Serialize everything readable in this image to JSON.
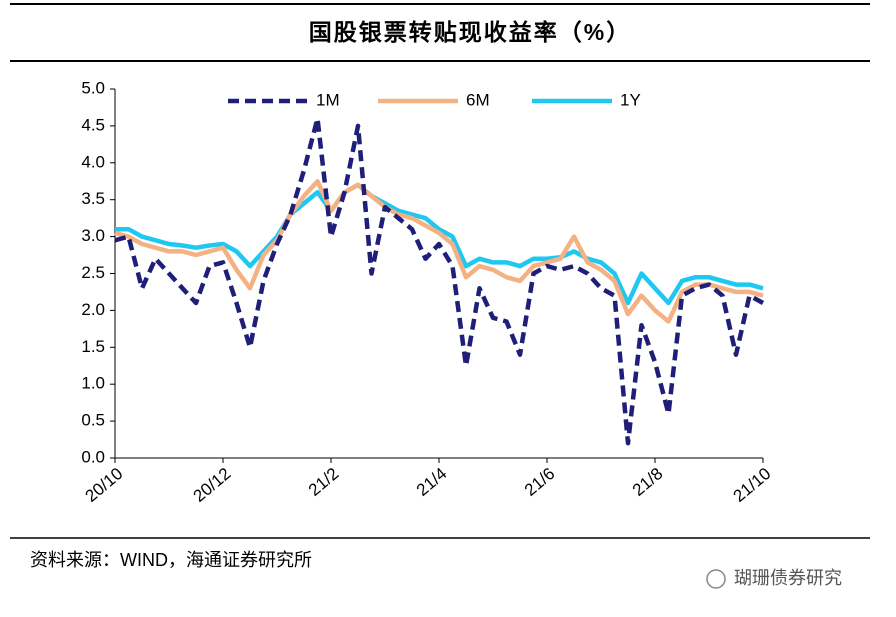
{
  "chart_data": {
    "type": "line",
    "title": "国股银票转贴现收益率（%）",
    "source": "资料来源：WIND，海通证券研究所",
    "watermark": "瑚珊债券研究",
    "legend": "top",
    "xlim": [
      0,
      12
    ],
    "xticks": [
      {
        "value": 0,
        "label": "20/10"
      },
      {
        "value": 2,
        "label": "20/12"
      },
      {
        "value": 4,
        "label": "21/2"
      },
      {
        "value": 6,
        "label": "21/4"
      },
      {
        "value": 8,
        "label": "21/6"
      },
      {
        "value": 10,
        "label": "21/8"
      },
      {
        "value": 12,
        "label": "21/10"
      }
    ],
    "ylim": [
      0,
      5
    ],
    "yticks": [
      {
        "value": 0,
        "label": "0.0"
      },
      {
        "value": 0.5,
        "label": "0.5"
      },
      {
        "value": 1,
        "label": "1.0"
      },
      {
        "value": 1.5,
        "label": "1.5"
      },
      {
        "value": 2,
        "label": "2.0"
      },
      {
        "value": 2.5,
        "label": "2.5"
      },
      {
        "value": 3,
        "label": "3.0"
      },
      {
        "value": 3.5,
        "label": "3.5"
      },
      {
        "value": 4,
        "label": "4.0"
      },
      {
        "value": 4.5,
        "label": "4.5"
      },
      {
        "value": 5,
        "label": "5.0"
      }
    ],
    "x": [
      0,
      0.25,
      0.5,
      0.75,
      1,
      1.25,
      1.5,
      1.75,
      2,
      2.25,
      2.5,
      2.75,
      3,
      3.25,
      3.5,
      3.75,
      4,
      4.25,
      4.5,
      4.75,
      5,
      5.25,
      5.5,
      5.75,
      6,
      6.25,
      6.5,
      6.75,
      7,
      7.25,
      7.5,
      7.75,
      8,
      8.25,
      8.5,
      8.75,
      9,
      9.25,
      9.5,
      9.75,
      10,
      10.25,
      10.5,
      10.75,
      11,
      11.25,
      11.5,
      11.75,
      12
    ],
    "series": [
      {
        "name": "1M",
        "color": "#1f1f7a",
        "dashed": true,
        "values": [
          2.95,
          3.0,
          2.3,
          2.7,
          2.5,
          2.3,
          2.1,
          2.6,
          2.65,
          2.1,
          1.5,
          2.4,
          2.9,
          3.3,
          3.9,
          4.6,
          3.0,
          3.6,
          4.5,
          2.5,
          3.4,
          3.25,
          3.1,
          2.7,
          2.9,
          2.6,
          1.25,
          2.3,
          1.9,
          1.85,
          1.4,
          2.5,
          2.6,
          2.55,
          2.6,
          2.5,
          2.3,
          2.2,
          0.2,
          1.8,
          1.3,
          0.6,
          2.2,
          2.3,
          2.35,
          2.2,
          1.4,
          2.2,
          2.1
        ]
      },
      {
        "name": "6M",
        "color": "#f4b183",
        "dashed": false,
        "values": [
          3.05,
          3.0,
          2.9,
          2.85,
          2.8,
          2.8,
          2.75,
          2.8,
          2.85,
          2.55,
          2.3,
          2.75,
          2.95,
          3.3,
          3.55,
          3.75,
          3.35,
          3.6,
          3.7,
          3.55,
          3.4,
          3.3,
          3.25,
          3.15,
          3.05,
          2.9,
          2.45,
          2.6,
          2.55,
          2.45,
          2.4,
          2.6,
          2.65,
          2.7,
          3.0,
          2.65,
          2.55,
          2.4,
          1.95,
          2.2,
          2.0,
          1.85,
          2.25,
          2.35,
          2.35,
          2.3,
          2.25,
          2.25,
          2.2
        ]
      },
      {
        "name": "1Y",
        "color": "#1ec8f0",
        "dashed": false,
        "values": [
          3.1,
          3.1,
          3.0,
          2.95,
          2.9,
          2.88,
          2.85,
          2.88,
          2.9,
          2.8,
          2.6,
          2.8,
          3.0,
          3.3,
          3.45,
          3.6,
          3.35,
          3.6,
          3.7,
          3.55,
          3.45,
          3.35,
          3.3,
          3.25,
          3.1,
          3.0,
          2.6,
          2.7,
          2.65,
          2.65,
          2.6,
          2.7,
          2.7,
          2.72,
          2.8,
          2.7,
          2.65,
          2.5,
          2.1,
          2.5,
          2.3,
          2.1,
          2.4,
          2.45,
          2.45,
          2.4,
          2.35,
          2.35,
          2.3
        ]
      }
    ]
  }
}
